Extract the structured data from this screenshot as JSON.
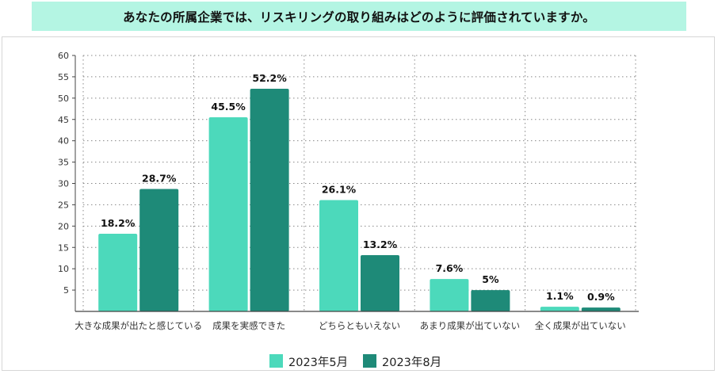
{
  "chart_data": {
    "type": "bar",
    "title": "あなたの所属企業では、リスキリングの取り組みはどのように評価されていますか。",
    "categories": [
      "大きな成果が出たと感じている",
      "成果を実感できた",
      "どちらともいえない",
      "あまり成果が出ていない",
      "全く成果が出ていない"
    ],
    "series": [
      {
        "name": "2023年5月",
        "values": [
          18.2,
          45.5,
          26.1,
          7.6,
          1.1
        ],
        "labels": [
          "18.2%",
          "45.5%",
          "26.1%",
          "7.6%",
          "1.1%"
        ],
        "color": "#4cd9bb"
      },
      {
        "name": "2023年8月",
        "values": [
          28.7,
          52.2,
          13.2,
          5,
          0.9
        ],
        "labels": [
          "28.7%",
          "52.2%",
          "13.2%",
          "5%",
          "0.9%"
        ],
        "color": "#1e8a78"
      }
    ],
    "y_ticks": [
      "5",
      "10",
      "15",
      "20",
      "25",
      "30",
      "35",
      "40",
      "45",
      "50",
      "55",
      "60"
    ],
    "ylim": [
      0,
      60
    ],
    "grid": true,
    "legend_position": "bottom"
  }
}
